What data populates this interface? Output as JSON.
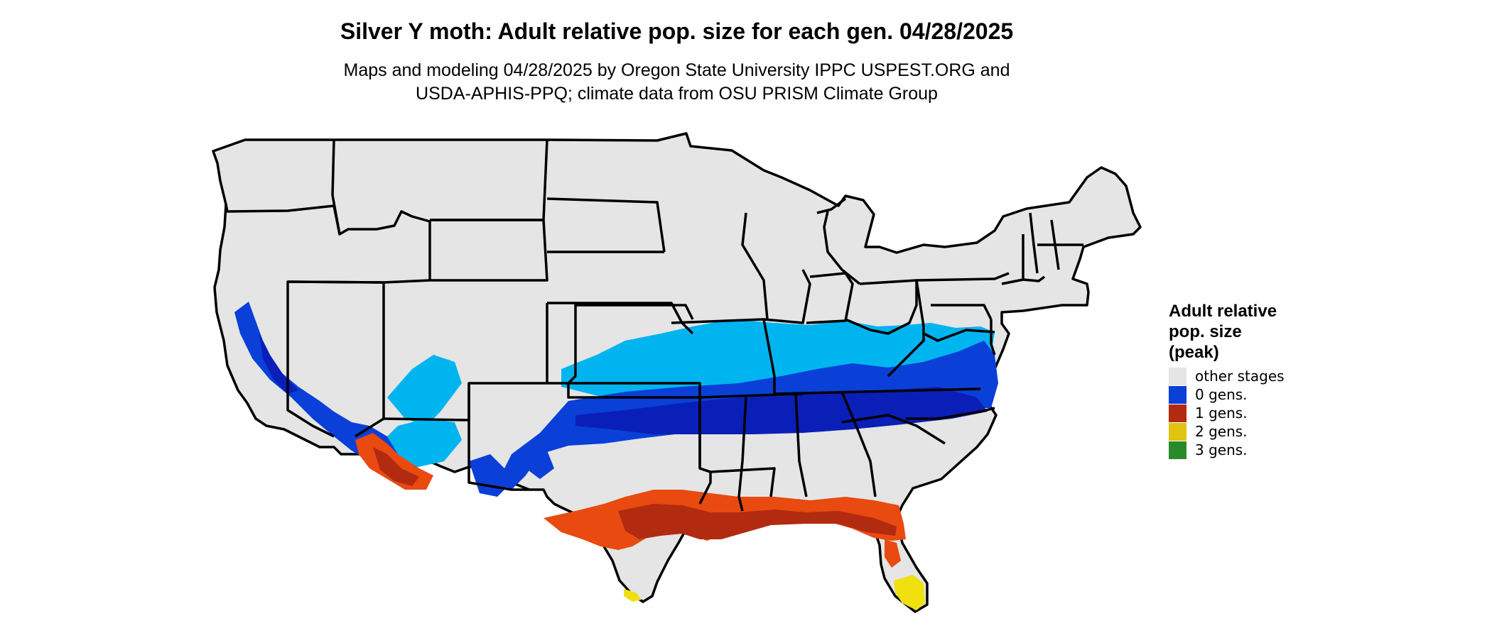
{
  "title": "Silver Y moth: Adult relative pop. size for each gen. 04/28/2025",
  "subtitle_line1": "Maps and modeling 04/28/2025 by Oregon State University IPPC USPEST.ORG and",
  "subtitle_line2": "USDA-APHIS-PPQ; climate data from OSU PRISM Climate Group",
  "legend": {
    "title": "Adult relative\npop. size\n(peak)",
    "items": [
      {
        "label": "other stages",
        "color": "#e5e5e5"
      },
      {
        "label": "0 gens.",
        "color": "#0a3fd8"
      },
      {
        "label": "1 gens.",
        "color": "#b22a10"
      },
      {
        "label": "2 gens.",
        "color": "#e0c410"
      },
      {
        "label": "3 gens.",
        "color": "#2a8a2a"
      }
    ]
  },
  "map_colors": {
    "land": "#e5e5e5",
    "light_blue": "#00b4f0",
    "blue": "#0a3fd8",
    "dark_blue": "#0a1fb8",
    "orange": "#e84a10",
    "red": "#b22a10",
    "yellow": "#f0e010",
    "border": "#000000"
  }
}
